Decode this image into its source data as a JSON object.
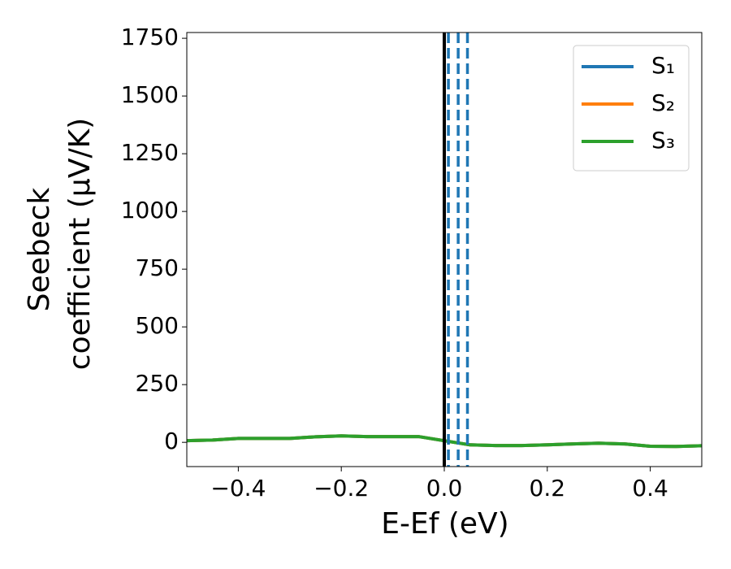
{
  "chart_data": {
    "type": "line",
    "x_label": "E-Ef (eV)",
    "y_label": [
      "Seebeck",
      "coefficient  (μV/K)"
    ],
    "x": [
      -0.5,
      -0.45,
      -0.4,
      -0.35,
      -0.3,
      -0.25,
      -0.2,
      -0.15,
      -0.1,
      -0.05,
      0,
      0.05,
      0.1,
      0.15,
      0.2,
      0.25,
      0.3,
      0.35,
      0.4,
      0.45,
      0.5
    ],
    "series": [
      {
        "name": "S₁",
        "color": "#1f77b4",
        "values": [
          7,
          10,
          17,
          17,
          17,
          24,
          28,
          25,
          25,
          25,
          7,
          -11,
          -14,
          -14,
          -11,
          -7,
          -4,
          -7,
          -17,
          -18,
          -15
        ]
      },
      {
        "name": "S₂",
        "color": "#ff7f0e",
        "values": [
          7,
          10,
          17,
          17,
          17,
          24,
          28,
          25,
          25,
          25,
          7,
          -11,
          -14,
          -14,
          -11,
          -7,
          -4,
          -7,
          -17,
          -18,
          -15
        ]
      },
      {
        "name": "S₃",
        "color": "#2ca02c",
        "values": [
          7,
          10,
          17,
          17,
          17,
          24,
          28,
          25,
          25,
          25,
          7,
          -11,
          -14,
          -14,
          -11,
          -7,
          -4,
          -7,
          -17,
          -18,
          -15
        ]
      }
    ],
    "vlines": [
      {
        "x": 0,
        "color": "#000000",
        "style": "solid"
      },
      {
        "x": 0.008,
        "color": "#1f77b4",
        "style": "dashed"
      },
      {
        "x": 0.027,
        "color": "#1f77b4",
        "style": "dashed"
      },
      {
        "x": 0.045,
        "color": "#1f77b4",
        "style": "dashed"
      }
    ],
    "xlim": [
      -0.5,
      0.5
    ],
    "ylim": [
      -105,
      1775
    ],
    "xticks": [
      {
        "value": -0.4,
        "label": "−0.4"
      },
      {
        "value": -0.2,
        "label": "−0.2"
      },
      {
        "value": 0,
        "label": "0.0"
      },
      0.2,
      0.4
    ],
    "yticks": [
      0,
      250,
      500,
      750,
      1000,
      1250,
      1500,
      1750
    ],
    "legend": "upper right"
  }
}
